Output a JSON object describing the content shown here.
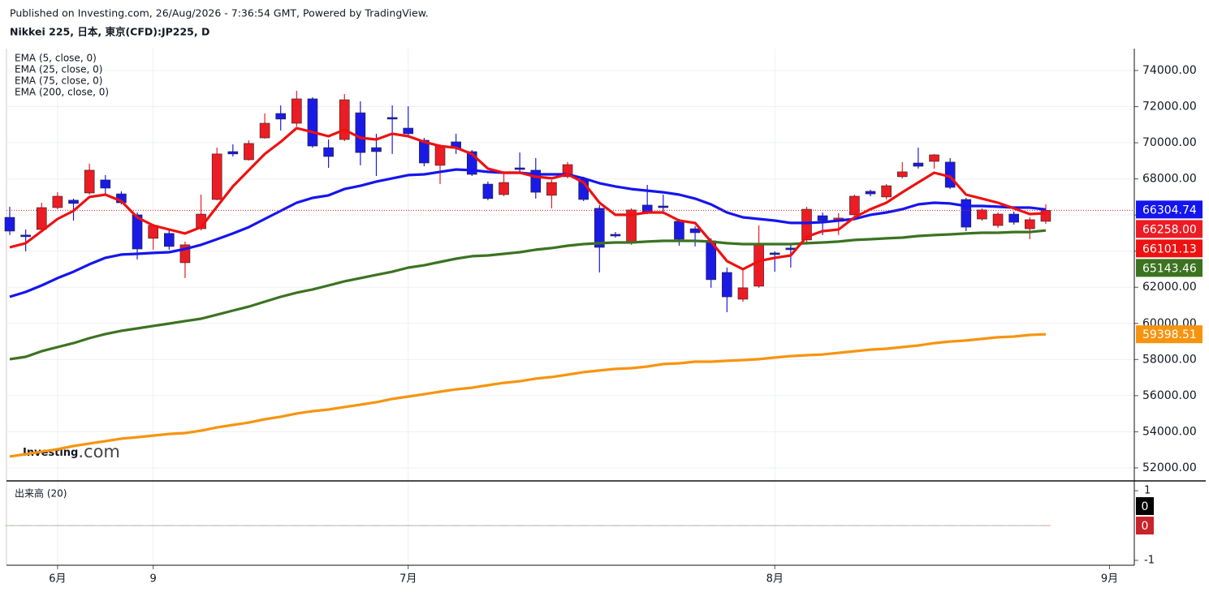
{
  "header": {
    "published": "Published on Investing.com, 26/Aug/2026 - 7:36:54 GMT, Powered by TradingView."
  },
  "chart_data": [
    {
      "type": "candlestick",
      "title": "Nikkei 225, 日本, 東京(CFD):JP225, D",
      "brand_name": "Investing",
      "brand_suffix": ".com",
      "categories": [
        null,
        null,
        null,
        "6月",
        null,
        null,
        null,
        null,
        null,
        "9",
        null,
        null,
        null,
        null,
        null,
        null,
        null,
        null,
        null,
        null,
        null,
        null,
        null,
        null,
        null,
        "7月",
        null,
        null,
        null,
        null,
        null,
        null,
        null,
        null,
        null,
        null,
        null,
        null,
        null,
        null,
        null,
        null,
        null,
        null,
        null,
        null,
        null,
        null,
        "8月",
        null,
        null,
        null,
        null,
        null,
        null,
        null,
        null,
        null,
        null,
        null,
        null,
        null,
        null,
        null,
        null,
        null
      ],
      "xticks": [
        {
          "value": 69,
          "label": "9月"
        }
      ],
      "open": [
        65870,
        64890,
        65200,
        66410,
        66820,
        67220,
        67940,
        67170,
        66010,
        64710,
        64980,
        63360,
        65240,
        66860,
        69510,
        69060,
        70270,
        71620,
        71080,
        72430,
        69730,
        70180,
        71660,
        69730,
        71400,
        70810,
        70140,
        68750,
        70050,
        69510,
        67710,
        67130,
        68610,
        68480,
        67090,
        68120,
        67980,
        66370,
        64930,
        64530,
        66550,
        66500,
        65650,
        65240,
        64570,
        62820,
        61340,
        62060,
        63900,
        64170,
        64620,
        65960,
        65650,
        66010,
        67310,
        67000,
        68120,
        68880,
        68970,
        68930,
        66860,
        65780,
        65420,
        66050,
        65240,
        65650
      ],
      "high": [
        66460,
        65200,
        66680,
        67260,
        66910,
        68840,
        68210,
        67310,
        66140,
        65510,
        65200,
        64530,
        67130,
        69730,
        69910,
        70140,
        71620,
        72070,
        72880,
        72520,
        70180,
        72700,
        72290,
        70500,
        72070,
        72020,
        70270,
        69910,
        70500,
        69600,
        67850,
        68340,
        69460,
        69150,
        67940,
        68930,
        68120,
        66550,
        65060,
        66370,
        67670,
        67130,
        65780,
        65380,
        64710,
        63090,
        63090,
        65420,
        63990,
        64440,
        66460,
        66140,
        66100,
        67130,
        67400,
        67710,
        68930,
        69730,
        69380,
        69150,
        66950,
        66370,
        66140,
        66190,
        65870,
        66590
      ],
      "low": [
        64890,
        63990,
        65110,
        66320,
        65690,
        67130,
        67130,
        66590,
        63540,
        64080,
        64080,
        62510,
        65150,
        66820,
        69240,
        69020,
        70230,
        70680,
        70900,
        69730,
        68610,
        70090,
        68750,
        68160,
        69380,
        70360,
        68700,
        67710,
        69380,
        68160,
        66820,
        67040,
        68300,
        66910,
        66370,
        68030,
        66770,
        62820,
        64750,
        64350,
        66050,
        66050,
        64300,
        64260,
        61970,
        60620,
        61200,
        61970,
        62860,
        63090,
        64440,
        64890,
        64890,
        65870,
        67040,
        66860,
        68030,
        68570,
        68570,
        67440,
        65110,
        65690,
        65290,
        65470,
        64660,
        65510
      ],
      "close": [
        65110,
        64800,
        66410,
        67040,
        66640,
        68480,
        67490,
        66680,
        64120,
        65420,
        64260,
        64350,
        66050,
        69380,
        69380,
        69960,
        71080,
        71310,
        72430,
        69820,
        69240,
        72380,
        69460,
        69510,
        71310,
        70500,
        68880,
        69820,
        69690,
        68250,
        66910,
        67800,
        68520,
        67260,
        67800,
        68790,
        66860,
        64210,
        64840,
        66280,
        66140,
        66410,
        64660,
        65020,
        62420,
        61470,
        61970,
        64440,
        63810,
        64080,
        66320,
        65690,
        65830,
        67040,
        67170,
        67620,
        68390,
        68700,
        69330,
        67530,
        65330,
        66280,
        66050,
        65600,
        65740,
        66258
      ],
      "last_label": "66258.00",
      "up_color": "#ec1c24",
      "down_color": "#1a1ae6",
      "series": [
        {
          "name": "EMA (5, close, 0)",
          "color": "#ee1111",
          "values": [
            64210,
            64440,
            65110,
            65780,
            66230,
            67000,
            67130,
            66770,
            65870,
            65420,
            65200,
            64980,
            65330,
            66460,
            67580,
            68480,
            69380,
            70050,
            70810,
            70590,
            70360,
            70720,
            70270,
            70180,
            70500,
            70360,
            70050,
            69820,
            69730,
            69380,
            68570,
            68340,
            68340,
            68120,
            68030,
            68250,
            67800,
            66680,
            66010,
            66010,
            66140,
            66140,
            65690,
            65560,
            64530,
            63450,
            63000,
            63450,
            63630,
            63760,
            64800,
            65110,
            65200,
            65870,
            66320,
            66680,
            67260,
            67800,
            68340,
            68120,
            67130,
            66910,
            66680,
            66370,
            66050,
            66101.13
          ]
        },
        {
          "name": "EMA (25, close, 0)",
          "color": "#1515ee",
          "values": [
            61470,
            61740,
            62100,
            62510,
            62860,
            63270,
            63630,
            63810,
            63850,
            63900,
            63940,
            64120,
            64350,
            64660,
            64980,
            65330,
            65780,
            66230,
            66680,
            66950,
            67090,
            67440,
            67620,
            67850,
            68030,
            68210,
            68250,
            68390,
            68520,
            68480,
            68390,
            68340,
            68340,
            68250,
            68250,
            68250,
            68030,
            67760,
            67580,
            67440,
            67350,
            67260,
            67130,
            66910,
            66590,
            66140,
            65870,
            65780,
            65690,
            65560,
            65560,
            65600,
            65690,
            65780,
            66010,
            66140,
            66320,
            66590,
            66680,
            66640,
            66500,
            66500,
            66460,
            66410,
            66410,
            66304.74
          ]
        },
        {
          "name": "EMA (75, close, 0)",
          "color": "#3b7321",
          "values": [
            58020,
            58150,
            58460,
            58690,
            58910,
            59180,
            59410,
            59590,
            59720,
            59860,
            59990,
            60130,
            60260,
            60480,
            60710,
            60930,
            61200,
            61470,
            61700,
            61880,
            62100,
            62330,
            62510,
            62690,
            62860,
            63090,
            63220,
            63400,
            63580,
            63720,
            63760,
            63850,
            63940,
            64080,
            64170,
            64300,
            64390,
            64440,
            64480,
            64480,
            64530,
            64570,
            64570,
            64570,
            64530,
            64440,
            64390,
            64390,
            64390,
            64390,
            64440,
            64480,
            64530,
            64620,
            64660,
            64710,
            64750,
            64840,
            64890,
            64930,
            64980,
            65020,
            65020,
            65060,
            65060,
            65143.46
          ]
        },
        {
          "name": "EMA (200, close, 0)",
          "color": "#f7940f",
          "values": [
            52630,
            52760,
            52900,
            53030,
            53210,
            53350,
            53480,
            53620,
            53700,
            53790,
            53880,
            53930,
            54060,
            54240,
            54380,
            54510,
            54690,
            54830,
            55010,
            55140,
            55230,
            55370,
            55500,
            55640,
            55820,
            55950,
            56080,
            56220,
            56350,
            56440,
            56580,
            56710,
            56800,
            56940,
            57030,
            57160,
            57300,
            57390,
            57480,
            57520,
            57610,
            57750,
            57790,
            57880,
            57880,
            57930,
            57970,
            58020,
            58110,
            58190,
            58240,
            58280,
            58370,
            58460,
            58550,
            58600,
            58690,
            58780,
            58910,
            59000,
            59050,
            59140,
            59230,
            59270,
            59360,
            59398.51
          ]
        }
      ],
      "ylim": [
        51280,
        75210
      ],
      "yticks": [
        {
          "value": 52000,
          "label": "52000.00"
        },
        {
          "value": 54000,
          "label": "54000.00"
        },
        {
          "value": 56000,
          "label": "56000.00"
        },
        {
          "value": 58000,
          "label": "58000.00"
        },
        {
          "value": 60000,
          "label": "60000.00"
        },
        {
          "value": 62000,
          "label": "62000.00"
        },
        {
          "value": 64000,
          "label": "64000.00"
        },
        {
          "value": 66000,
          "label": "66000.00"
        },
        {
          "value": 68000,
          "label": "68000.00"
        },
        {
          "value": 70000,
          "label": "70000.00"
        },
        {
          "value": 72000,
          "label": "72000.00"
        },
        {
          "value": 74000,
          "label": "74000.00"
        }
      ],
      "grid": true
    },
    {
      "type": "volume",
      "title": "出来高 (20)",
      "values": [
        0,
        0,
        0,
        0,
        0,
        0,
        0,
        0,
        0,
        0,
        0,
        0,
        0,
        0,
        0,
        0,
        0,
        0,
        0,
        0,
        0,
        0,
        0,
        0,
        0,
        0,
        0,
        0,
        0,
        0,
        0,
        0,
        0,
        0,
        0,
        0,
        0,
        0,
        0,
        0,
        0,
        0,
        0,
        0,
        0,
        0,
        0,
        0,
        0,
        0,
        0,
        0,
        0,
        0,
        0,
        0,
        0,
        0,
        0,
        0,
        0,
        0,
        0,
        0,
        0,
        0
      ],
      "ma": [
        0,
        0,
        0,
        0,
        0,
        0,
        0,
        0,
        0,
        0,
        0,
        0,
        0,
        0,
        0,
        0,
        0,
        0,
        0,
        0,
        0,
        0,
        0,
        0,
        0,
        0,
        0,
        0,
        0,
        0,
        0,
        0,
        0,
        0,
        0,
        0,
        0,
        0,
        0,
        0,
        0,
        0,
        0,
        0,
        0,
        0,
        0,
        0,
        0,
        0,
        0,
        0,
        0,
        0,
        0,
        0,
        0,
        0,
        0,
        0,
        0,
        0,
        0,
        0,
        0,
        0
      ],
      "color": "#000000",
      "ma_color": "#c8232b",
      "ylim": [
        -1.14,
        1.19
      ],
      "yticks": [
        -1,
        1
      ]
    }
  ]
}
